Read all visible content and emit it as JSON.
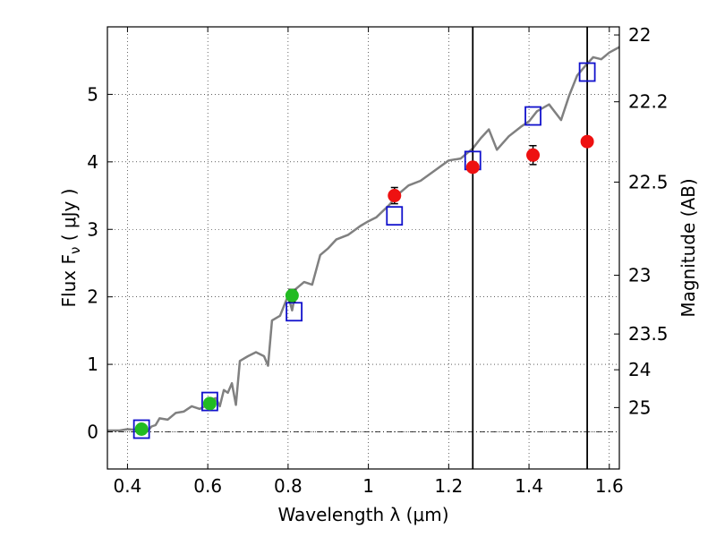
{
  "chart_data": {
    "type": "scatter",
    "xlabel": "Wavelength  λ (μm)",
    "ylabel": "Flux  F",
    "ylabel_sub": "ν",
    "ylabel_unit": "  ( μJy )",
    "y2label": "Magnitude (AB)",
    "xlim": [
      0.35,
      1.625
    ],
    "ylim": [
      -0.55,
      6.0
    ],
    "grid": true,
    "x_ticks": [
      0.4,
      0.6,
      0.8,
      1.0,
      1.2,
      1.4,
      1.6
    ],
    "x_tick_labels": [
      "0.4",
      "0.6",
      "0.8",
      "1",
      "1.2",
      "1.4",
      "1.6"
    ],
    "y_ticks": [
      0,
      1,
      2,
      3,
      4,
      5
    ],
    "y_tick_labels": [
      "0",
      "1",
      "2",
      "3",
      "4",
      "5"
    ],
    "y2_ticks": [
      {
        "label": "22",
        "flux": 5.88
      },
      {
        "label": "22.2",
        "flux": 4.89
      },
      {
        "label": "22.5",
        "flux": 3.7
      },
      {
        "label": "23",
        "flux": 2.32
      },
      {
        "label": "23.5",
        "flux": 1.45
      },
      {
        "label": "24",
        "flux": 0.92
      },
      {
        "label": "25",
        "flux": 0.36
      }
    ],
    "vlines_x": [
      1.26,
      1.545
    ],
    "hline_y": 0,
    "model_curve": {
      "color": "#808080",
      "x": [
        0.35,
        0.38,
        0.4,
        0.42,
        0.44,
        0.45,
        0.46,
        0.47,
        0.48,
        0.5,
        0.52,
        0.54,
        0.56,
        0.58,
        0.6,
        0.61,
        0.62,
        0.63,
        0.64,
        0.65,
        0.66,
        0.67,
        0.68,
        0.7,
        0.72,
        0.74,
        0.75,
        0.76,
        0.78,
        0.8,
        0.81,
        0.82,
        0.84,
        0.86,
        0.88,
        0.9,
        0.92,
        0.95,
        0.98,
        1.0,
        1.02,
        1.05,
        1.08,
        1.1,
        1.13,
        1.16,
        1.2,
        1.23,
        1.26,
        1.28,
        1.3,
        1.32,
        1.35,
        1.38,
        1.4,
        1.42,
        1.45,
        1.48,
        1.5,
        1.52,
        1.54,
        1.56,
        1.58,
        1.6,
        1.625
      ],
      "y": [
        0.02,
        0.02,
        0.04,
        0.03,
        0.06,
        0.01,
        0.08,
        0.1,
        0.2,
        0.18,
        0.28,
        0.3,
        0.38,
        0.34,
        0.4,
        0.48,
        0.5,
        0.38,
        0.62,
        0.58,
        0.72,
        0.4,
        1.05,
        1.12,
        1.18,
        1.12,
        0.98,
        1.65,
        1.72,
        2.02,
        1.8,
        2.12,
        2.22,
        2.18,
        2.62,
        2.72,
        2.85,
        2.92,
        3.05,
        3.12,
        3.18,
        3.35,
        3.55,
        3.65,
        3.72,
        3.85,
        4.02,
        4.05,
        4.2,
        4.35,
        4.48,
        4.18,
        4.38,
        4.52,
        4.6,
        4.75,
        4.85,
        4.62,
        4.98,
        5.28,
        5.42,
        5.55,
        5.52,
        5.62,
        5.7
      ]
    },
    "series": [
      {
        "marker": "square-open",
        "color": "#1111cc",
        "x": [
          0.435,
          0.605,
          0.815,
          1.065,
          1.26,
          1.41,
          1.545
        ],
        "y": [
          0.04,
          0.45,
          1.78,
          3.2,
          4.02,
          4.68,
          5.33
        ]
      },
      {
        "marker": "circle",
        "color": "#22bb22",
        "x": [
          0.435,
          0.605,
          0.81
        ],
        "y": [
          0.04,
          0.42,
          2.02
        ],
        "yerr": [
          0.03,
          0.03,
          0.09
        ]
      },
      {
        "marker": "circle",
        "color": "#ee1111",
        "x": [
          1.065,
          1.26,
          1.41,
          1.545
        ],
        "y": [
          3.5,
          3.92,
          4.1,
          4.3
        ],
        "yerr": [
          0.12,
          0.06,
          0.14,
          0.0
        ]
      }
    ]
  }
}
